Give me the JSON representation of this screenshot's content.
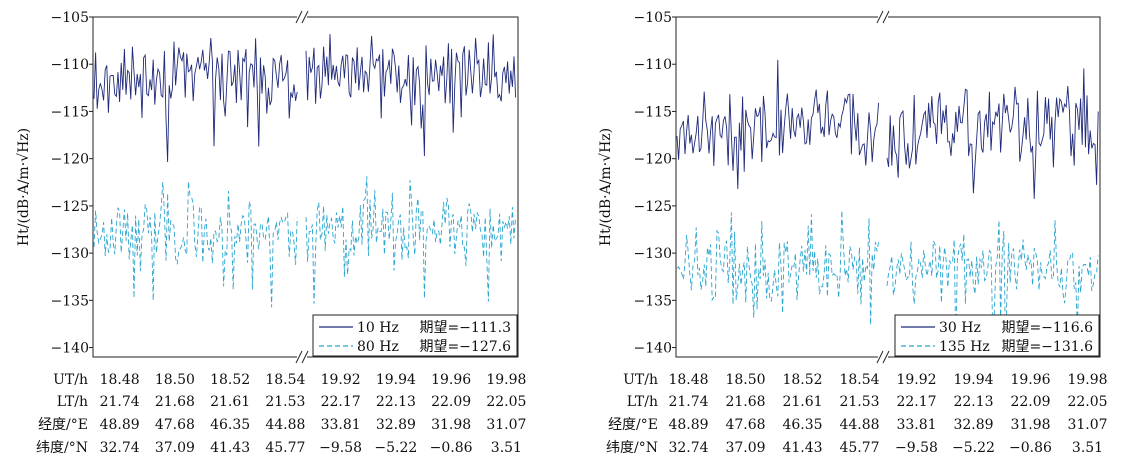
{
  "chart_data": [
    {
      "type": "line",
      "title": "",
      "ylabel": "Ht/(dB·A/m·√Hz)",
      "ylim": [
        -141,
        -105
      ],
      "yticks": [
        -105,
        -110,
        -115,
        -120,
        -125,
        -130,
        -135,
        -140
      ],
      "ytick_labels": [
        "−105",
        "−110",
        "−115",
        "−120",
        "−125",
        "−130",
        "−135",
        "−140"
      ],
      "x_rows": [
        {
          "label": "UT/h",
          "values": [
            "18.48",
            "18.50",
            "18.52",
            "18.54",
            "19.92",
            "19.94",
            "19.96",
            "19.98"
          ]
        },
        {
          "label": "LT/h",
          "values": [
            "21.74",
            "21.68",
            "21.61",
            "21.53",
            "22.17",
            "22.13",
            "22.09",
            "22.05"
          ]
        },
        {
          "label": "经度/°E",
          "values": [
            "48.89",
            "47.68",
            "46.35",
            "44.88",
            "33.81",
            "32.89",
            "31.98",
            "31.07"
          ]
        },
        {
          "label": "纬度/°N",
          "values": [
            "32.74",
            "37.09",
            "41.43",
            "45.77",
            "−9.58",
            "−5.22",
            "−0.86",
            "3.51"
          ]
        }
      ],
      "axis_break": true,
      "legend_position": "bottom-right",
      "series": [
        {
          "name": "10 Hz",
          "expectation_label": "期望=−111.3",
          "mean": -111.3,
          "style": "solid",
          "color": "#1f2a7a"
        },
        {
          "name": "80 Hz",
          "expectation_label": "期望=−127.6",
          "mean": -127.6,
          "style": "dashed",
          "color": "#2aa5d0"
        }
      ]
    },
    {
      "type": "line",
      "title": "",
      "ylabel": "Ht/(dB·A/m·√Hz)",
      "ylim": [
        -141,
        -105
      ],
      "yticks": [
        -105,
        -110,
        -115,
        -120,
        -125,
        -130,
        -135,
        -140
      ],
      "ytick_labels": [
        "−105",
        "−110",
        "−115",
        "−120",
        "−125",
        "−130",
        "−135",
        "−140"
      ],
      "x_rows": [
        {
          "label": "UT/h",
          "values": [
            "18.48",
            "18.50",
            "18.52",
            "18.54",
            "19.92",
            "19.94",
            "19.96",
            "19.98"
          ]
        },
        {
          "label": "LT/h",
          "values": [
            "21.74",
            "21.68",
            "21.61",
            "21.53",
            "22.17",
            "22.13",
            "22.09",
            "22.05"
          ]
        },
        {
          "label": "经度/°E",
          "values": [
            "48.89",
            "47.68",
            "46.35",
            "44.88",
            "33.81",
            "32.89",
            "31.98",
            "31.07"
          ]
        },
        {
          "label": "纬度/°N",
          "values": [
            "32.74",
            "37.09",
            "41.43",
            "45.77",
            "−9.58",
            "−5.22",
            "−0.86",
            "3.51"
          ]
        }
      ],
      "axis_break": true,
      "legend_position": "bottom-right",
      "series": [
        {
          "name": "30 Hz",
          "expectation_label": "期望=−116.6",
          "mean": -116.6,
          "style": "solid",
          "color": "#1f2a7a"
        },
        {
          "name": "135 Hz",
          "expectation_label": "期望=−131.6",
          "mean": -131.6,
          "style": "dashed",
          "color": "#2aa5d0"
        }
      ]
    }
  ]
}
